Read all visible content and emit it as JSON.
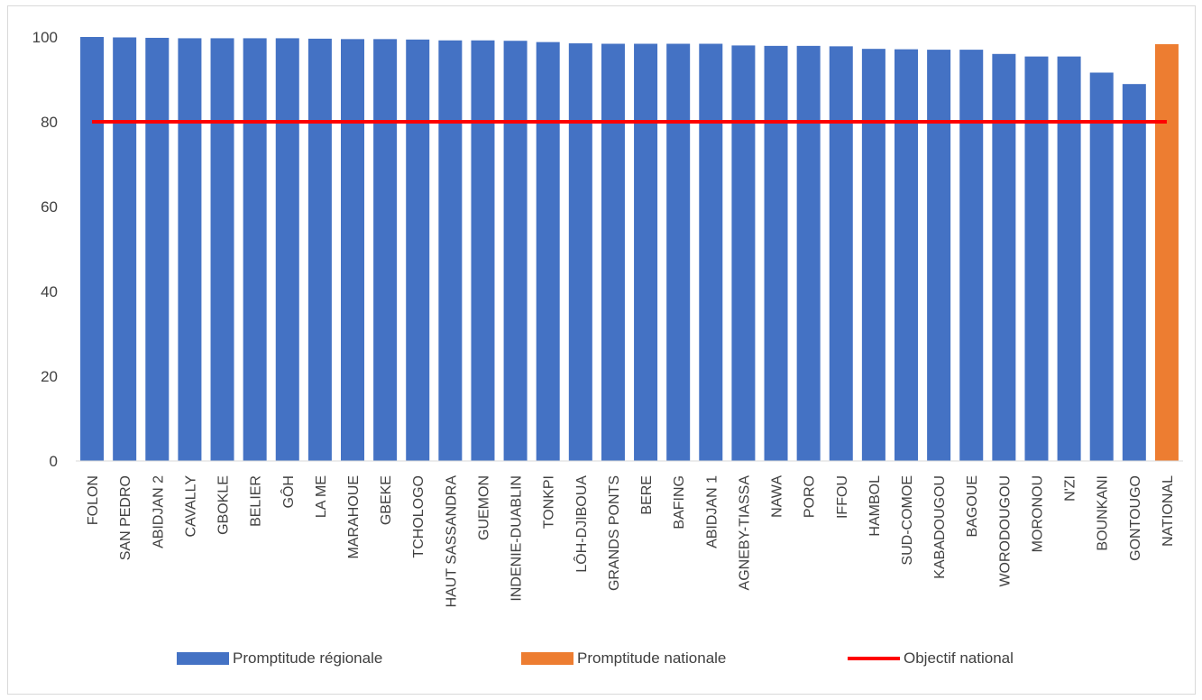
{
  "chart_data": {
    "type": "bar",
    "title": "",
    "xlabel": "",
    "ylabel": "",
    "ylim": [
      0,
      100
    ],
    "yticks": [
      0,
      20,
      40,
      60,
      80,
      100
    ],
    "grid": false,
    "legend_position": "bottom",
    "categories": [
      "FOLON",
      "SAN PEDRO",
      "ABIDJAN 2",
      "CAVALLY",
      "GBOKLE",
      "BELIER",
      "GÔH",
      "LA ME",
      "MARAHOUE",
      "GBEKE",
      "TCHOLOGO",
      "HAUT SASSANDRA",
      "GUEMON",
      "INDENIE-DUABLIN",
      "TONKPI",
      "LÔH-DJIBOUA",
      "GRANDS PONTS",
      "BERE",
      "BAFING",
      "ABIDJAN 1",
      "AGNEBY-TIASSA",
      "NAWA",
      "PORO",
      "IFFOU",
      "HAMBOL",
      "SUD-COMOE",
      "KABADOUGOU",
      "BAGOUE",
      "WORODOUGOU",
      "MORONOU",
      "N'ZI",
      "BOUNKANI",
      "GONTOUGO",
      "NATIONAL"
    ],
    "series": [
      {
        "name": "Promptitude régionale",
        "color": "#4472c4",
        "values": [
          100,
          99.9,
          99.8,
          99.7,
          99.7,
          99.7,
          99.7,
          99.6,
          99.5,
          99.5,
          99.4,
          99.2,
          99.2,
          99.1,
          98.8,
          98.5,
          98.4,
          98.4,
          98.4,
          98.4,
          98.0,
          97.9,
          97.9,
          97.8,
          97.2,
          97.1,
          97.0,
          97.0,
          96.0,
          95.4,
          95.4,
          91.6,
          88.9,
          null
        ]
      },
      {
        "name": "Promptitude nationale",
        "color": "#ed7d31",
        "values": [
          null,
          null,
          null,
          null,
          null,
          null,
          null,
          null,
          null,
          null,
          null,
          null,
          null,
          null,
          null,
          null,
          null,
          null,
          null,
          null,
          null,
          null,
          null,
          null,
          null,
          null,
          null,
          null,
          null,
          null,
          null,
          null,
          null,
          98.3
        ]
      },
      {
        "name": "Objectif national",
        "type": "line",
        "color": "#ff0000",
        "values": [
          80,
          80,
          80,
          80,
          80,
          80,
          80,
          80,
          80,
          80,
          80,
          80,
          80,
          80,
          80,
          80,
          80,
          80,
          80,
          80,
          80,
          80,
          80,
          80,
          80,
          80,
          80,
          80,
          80,
          80,
          80,
          80,
          80,
          80
        ]
      }
    ]
  }
}
